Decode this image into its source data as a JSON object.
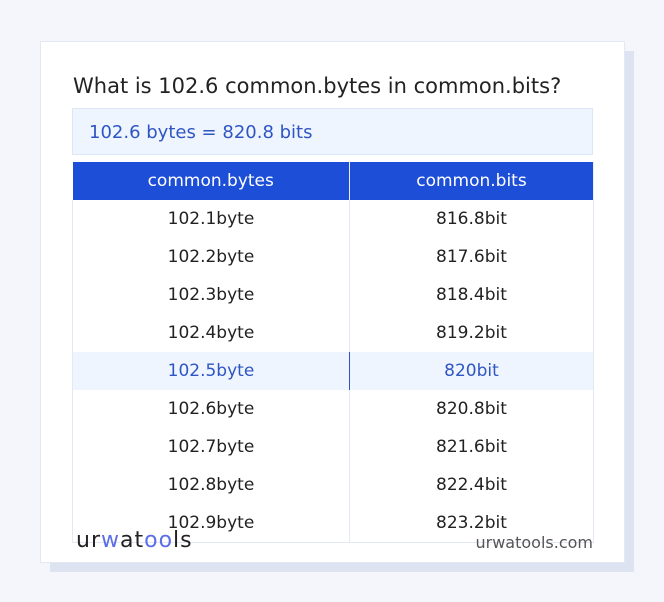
{
  "title": "What is 102.6 common.bytes in common.bits?",
  "result": "102.6 bytes = 820.8 bits",
  "table": {
    "headers": [
      "common.bytes",
      "common.bits"
    ],
    "rows": [
      [
        "102.1byte",
        "816.8bit"
      ],
      [
        "102.2byte",
        "817.6bit"
      ],
      [
        "102.3byte",
        "818.4bit"
      ],
      [
        "102.4byte",
        "819.2bit"
      ],
      [
        "102.5byte",
        "820bit"
      ],
      [
        "102.6byte",
        "820.8bit"
      ],
      [
        "102.7byte",
        "821.6bit"
      ],
      [
        "102.8byte",
        "822.4bit"
      ],
      [
        "102.9byte",
        "823.2bit"
      ]
    ],
    "highlighted_row": 4
  },
  "footer": {
    "logo": "urwatools",
    "site": "urwatools.com"
  },
  "colors": {
    "accent": "#1d4ed8",
    "highlight_text": "#2f55c4",
    "highlight_bg": "#eef5ff"
  }
}
